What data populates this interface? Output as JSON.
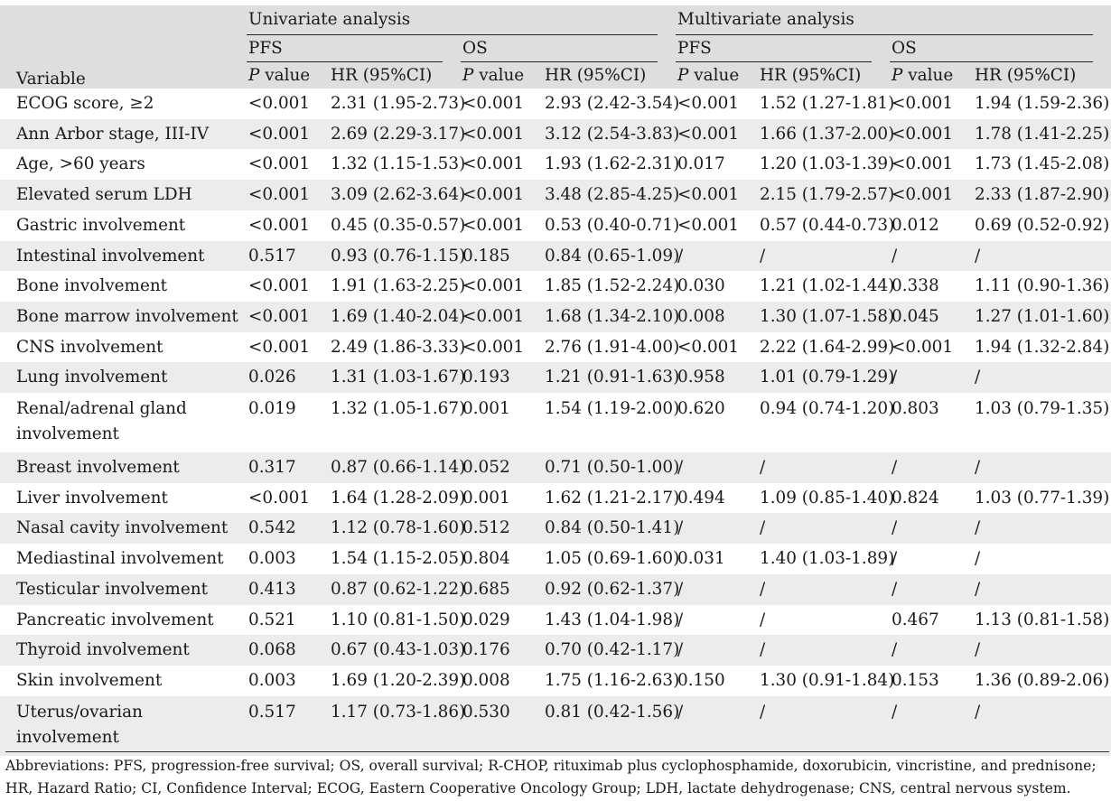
{
  "header": {
    "variable": "Variable",
    "univariate": "Univariate analysis",
    "multivariate": "Multivariate analysis",
    "pfs": "PFS",
    "os": "OS",
    "p_italic": "P",
    "p_rest": " value",
    "hr": "HR (95%CI)"
  },
  "rows": [
    {
      "variable": "ECOG score, ≥2",
      "u_pfs_p": "<0.001",
      "u_pfs_hr": "2.31 (1.95-2.73)",
      "u_os_p": "<0.001",
      "u_os_hr": "2.93 (2.42-3.54)",
      "m_pfs_p": "<0.001",
      "m_pfs_hr": "1.52 (1.27-1.81)",
      "m_os_p": "<0.001",
      "m_os_hr": "1.94 (1.59-2.36)"
    },
    {
      "variable": "Ann Arbor stage, III-IV",
      "u_pfs_p": "<0.001",
      "u_pfs_hr": "2.69 (2.29-3.17)",
      "u_os_p": "<0.001",
      "u_os_hr": "3.12 (2.54-3.83)",
      "m_pfs_p": "<0.001",
      "m_pfs_hr": "1.66 (1.37-2.00)",
      "m_os_p": "<0.001",
      "m_os_hr": "1.78 (1.41-2.25)"
    },
    {
      "variable": "Age, >60 years",
      "u_pfs_p": "<0.001",
      "u_pfs_hr": "1.32 (1.15-1.53)",
      "u_os_p": "<0.001",
      "u_os_hr": "1.93 (1.62-2.31)",
      "m_pfs_p": "0.017",
      "m_pfs_hr": "1.20 (1.03-1.39)",
      "m_os_p": "<0.001",
      "m_os_hr": "1.73 (1.45-2.08)"
    },
    {
      "variable": "Elevated serum LDH",
      "u_pfs_p": "<0.001",
      "u_pfs_hr": "3.09 (2.62-3.64)",
      "u_os_p": "<0.001",
      "u_os_hr": "3.48 (2.85-4.25)",
      "m_pfs_p": "<0.001",
      "m_pfs_hr": "2.15 (1.79-2.57)",
      "m_os_p": "<0.001",
      "m_os_hr": "2.33 (1.87-2.90)"
    },
    {
      "variable": "Gastric involvement",
      "u_pfs_p": "<0.001",
      "u_pfs_hr": "0.45 (0.35-0.57)",
      "u_os_p": "<0.001",
      "u_os_hr": "0.53 (0.40-0.71)",
      "m_pfs_p": "<0.001",
      "m_pfs_hr": "0.57 (0.44-0.73)",
      "m_os_p": "0.012",
      "m_os_hr": "0.69 (0.52-0.92)"
    },
    {
      "variable": "Intestinal involvement",
      "u_pfs_p": "0.517",
      "u_pfs_hr": "0.93 (0.76-1.15)",
      "u_os_p": "0.185",
      "u_os_hr": "0.84 (0.65-1.09)",
      "m_pfs_p": "/",
      "m_pfs_hr": "/",
      "m_os_p": "/",
      "m_os_hr": "/"
    },
    {
      "variable": "Bone involvement",
      "u_pfs_p": "<0.001",
      "u_pfs_hr": "1.91 (1.63-2.25)",
      "u_os_p": "<0.001",
      "u_os_hr": "1.85 (1.52-2.24)",
      "m_pfs_p": "0.030",
      "m_pfs_hr": "1.21 (1.02-1.44)",
      "m_os_p": "0.338",
      "m_os_hr": "1.11 (0.90-1.36)"
    },
    {
      "variable": "Bone marrow involvement",
      "u_pfs_p": "<0.001",
      "u_pfs_hr": "1.69 (1.40-2.04)",
      "u_os_p": "<0.001",
      "u_os_hr": "1.68 (1.34-2.10)",
      "m_pfs_p": "0.008",
      "m_pfs_hr": "1.30 (1.07-1.58)",
      "m_os_p": "0.045",
      "m_os_hr": "1.27 (1.01-1.60)"
    },
    {
      "variable": "CNS involvement",
      "u_pfs_p": "<0.001",
      "u_pfs_hr": "2.49 (1.86-3.33)",
      "u_os_p": "<0.001",
      "u_os_hr": "2.76 (1.91-4.00)",
      "m_pfs_p": "<0.001",
      "m_pfs_hr": "2.22 (1.64-2.99)",
      "m_os_p": "<0.001",
      "m_os_hr": "1.94 (1.32-2.84)"
    },
    {
      "variable": "Lung involvement",
      "u_pfs_p": "0.026",
      "u_pfs_hr": "1.31 (1.03-1.67)",
      "u_os_p": "0.193",
      "u_os_hr": "1.21 (0.91-1.63)",
      "m_pfs_p": "0.958",
      "m_pfs_hr": "1.01 (0.79-1.29)",
      "m_os_p": "/",
      "m_os_hr": "/"
    },
    {
      "variable": "Renal/adrenal gland involvement",
      "u_pfs_p": "0.019",
      "u_pfs_hr": "1.32 (1.05-1.67)",
      "u_os_p": "0.001",
      "u_os_hr": "1.54 (1.19-2.00)",
      "m_pfs_p": "0.620",
      "m_pfs_hr": "0.94 (0.74-1.20)",
      "m_os_p": "0.803",
      "m_os_hr": "1.03 (0.79-1.35)"
    },
    {
      "variable": "Breast involvement",
      "u_pfs_p": "0.317",
      "u_pfs_hr": "0.87 (0.66-1.14)",
      "u_os_p": "0.052",
      "u_os_hr": "0.71 (0.50-1.00)",
      "m_pfs_p": "/",
      "m_pfs_hr": "/",
      "m_os_p": "/",
      "m_os_hr": "/"
    },
    {
      "variable": "Liver involvement",
      "u_pfs_p": "<0.001",
      "u_pfs_hr": "1.64 (1.28-2.09)",
      "u_os_p": "0.001",
      "u_os_hr": "1.62 (1.21-2.17)",
      "m_pfs_p": "0.494",
      "m_pfs_hr": "1.09 (0.85-1.40)",
      "m_os_p": "0.824",
      "m_os_hr": "1.03 (0.77-1.39)"
    },
    {
      "variable": "Nasal cavity involvement",
      "u_pfs_p": "0.542",
      "u_pfs_hr": "1.12 (0.78-1.60)",
      "u_os_p": "0.512",
      "u_os_hr": "0.84 (0.50-1.41)",
      "m_pfs_p": "/",
      "m_pfs_hr": "/",
      "m_os_p": "/",
      "m_os_hr": "/"
    },
    {
      "variable": "Mediastinal involvement",
      "u_pfs_p": "0.003",
      "u_pfs_hr": "1.54 (1.15-2.05)",
      "u_os_p": "0.804",
      "u_os_hr": "1.05 (0.69-1.60)",
      "m_pfs_p": "0.031",
      "m_pfs_hr": "1.40 (1.03-1.89)",
      "m_os_p": "/",
      "m_os_hr": "/"
    },
    {
      "variable": "Testicular involvement",
      "u_pfs_p": "0.413",
      "u_pfs_hr": "0.87 (0.62-1.22)",
      "u_os_p": "0.685",
      "u_os_hr": "0.92 (0.62-1.37)",
      "m_pfs_p": "/",
      "m_pfs_hr": "/",
      "m_os_p": "/",
      "m_os_hr": "/"
    },
    {
      "variable": "Pancreatic involvement",
      "u_pfs_p": "0.521",
      "u_pfs_hr": "1.10 (0.81-1.50)",
      "u_os_p": "0.029",
      "u_os_hr": "1.43 (1.04-1.98)",
      "m_pfs_p": "/",
      "m_pfs_hr": "/",
      "m_os_p": "0.467",
      "m_os_hr": "1.13 (0.81-1.58)"
    },
    {
      "variable": "Thyroid involvement",
      "u_pfs_p": "0.068",
      "u_pfs_hr": "0.67 (0.43-1.03)",
      "u_os_p": "0.176",
      "u_os_hr": "0.70 (0.42-1.17)",
      "m_pfs_p": "/",
      "m_pfs_hr": "/",
      "m_os_p": "/",
      "m_os_hr": "/"
    },
    {
      "variable": "Skin involvement",
      "u_pfs_p": "0.003",
      "u_pfs_hr": "1.69 (1.20-2.39)",
      "u_os_p": "0.008",
      "u_os_hr": "1.75 (1.16-2.63)",
      "m_pfs_p": "0.150",
      "m_pfs_hr": "1.30 (0.91-1.84)",
      "m_os_p": "0.153",
      "m_os_hr": "1.36 (0.89-2.06)"
    },
    {
      "variable": "Uterus/ovarian involvement",
      "u_pfs_p": "0.517",
      "u_pfs_hr": "1.17 (0.73-1.86)",
      "u_os_p": "0.530",
      "u_os_hr": "0.81 (0.42-1.56)",
      "m_pfs_p": "/",
      "m_pfs_hr": "/",
      "m_os_p": "/",
      "m_os_hr": "/"
    }
  ],
  "footnote": "Abbreviations: PFS, progression-free survival; OS, overall survival; R-CHOP, rituximab plus cyclophosphamide, doxorubicin, vincristine, and prednisone; HR, Hazard Ratio; CI, Confidence Interval; ECOG, Eastern Cooperative Oncology Group; LDH, lactate dehydrogenase; CNS, central nervous system."
}
